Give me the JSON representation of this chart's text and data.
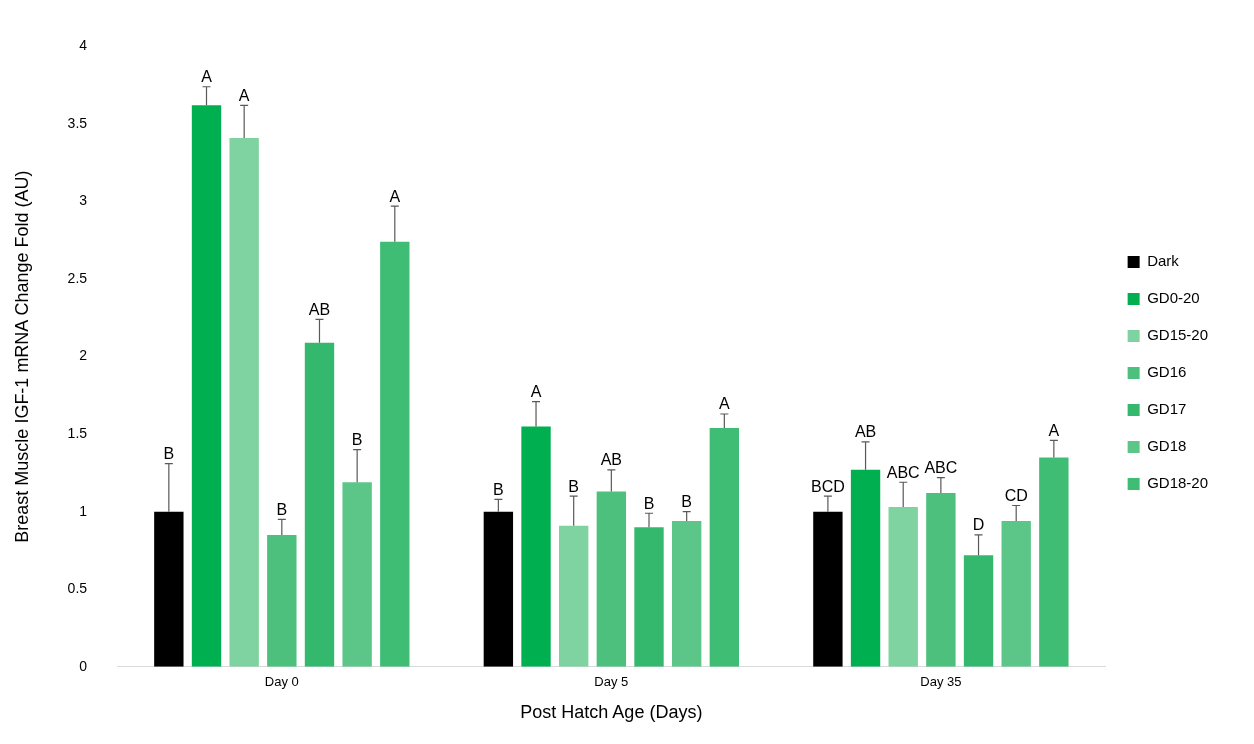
{
  "chart_data": {
    "type": "bar",
    "xlabel": "Post Hatch Age (Days)",
    "ylabel": "Breast Muscle IGF-1 mRNA Change Fold (AU)",
    "categories": [
      "Day 0",
      "Day 5",
      "Day 35"
    ],
    "ylim": [
      0,
      4
    ],
    "yticks": [
      0,
      0.5,
      1,
      1.5,
      2,
      2.5,
      3,
      3.5,
      4
    ],
    "grid": false,
    "legend": "right",
    "series": [
      {
        "name": "Dark",
        "color": "#000000",
        "values": [
          1.0,
          1.0,
          1.0
        ],
        "errors": [
          [
            1.0,
            1.31
          ],
          [
            1.0,
            1.08
          ],
          [
            1.0,
            1.1
          ]
        ],
        "value_labels": [
          "B",
          "B",
          "BCD"
        ]
      },
      {
        "name": "GD0-20",
        "color": "#00b050",
        "values": [
          3.62,
          1.55,
          1.27
        ],
        "errors": [
          [
            3.62,
            3.74
          ],
          [
            1.55,
            1.71
          ],
          [
            1.27,
            1.45
          ]
        ],
        "value_labels": [
          "A",
          "A",
          "AB"
        ]
      },
      {
        "name": "GD15-20",
        "color": "#7fd3a0",
        "values": [
          3.41,
          0.91,
          1.03
        ],
        "errors": [
          [
            3.41,
            3.62
          ],
          [
            0.91,
            1.1
          ],
          [
            1.03,
            1.19
          ]
        ],
        "value_labels": [
          "A",
          "B",
          "ABC"
        ]
      },
      {
        "name": "GD16",
        "color": "#4cc07c",
        "values": [
          0.85,
          1.13,
          1.12
        ],
        "errors": [
          [
            0.85,
            0.95
          ],
          [
            1.13,
            1.27
          ],
          [
            1.12,
            1.22
          ]
        ],
        "value_labels": [
          "B",
          "AB",
          "ABC"
        ]
      },
      {
        "name": "GD17",
        "color": "#33b86d",
        "values": [
          2.09,
          0.9,
          0.72
        ],
        "errors": [
          [
            2.09,
            2.24
          ],
          [
            0.9,
            0.99
          ],
          [
            0.72,
            0.85
          ]
        ],
        "value_labels": [
          "AB",
          "B",
          "D"
        ]
      },
      {
        "name": "GD18",
        "color": "#5cc688",
        "values": [
          1.19,
          0.94,
          0.94
        ],
        "errors": [
          [
            1.19,
            1.4
          ],
          [
            0.94,
            1.0
          ],
          [
            0.94,
            1.04
          ]
        ],
        "value_labels": [
          "B",
          "B",
          "CD"
        ]
      },
      {
        "name": "GD18-20",
        "color": "#40bd75",
        "values": [
          2.74,
          1.54,
          1.35
        ],
        "errors": [
          [
            2.74,
            2.97
          ],
          [
            1.54,
            1.63
          ],
          [
            1.35,
            1.46
          ]
        ],
        "value_labels": [
          "A",
          "A",
          "A"
        ]
      }
    ]
  }
}
